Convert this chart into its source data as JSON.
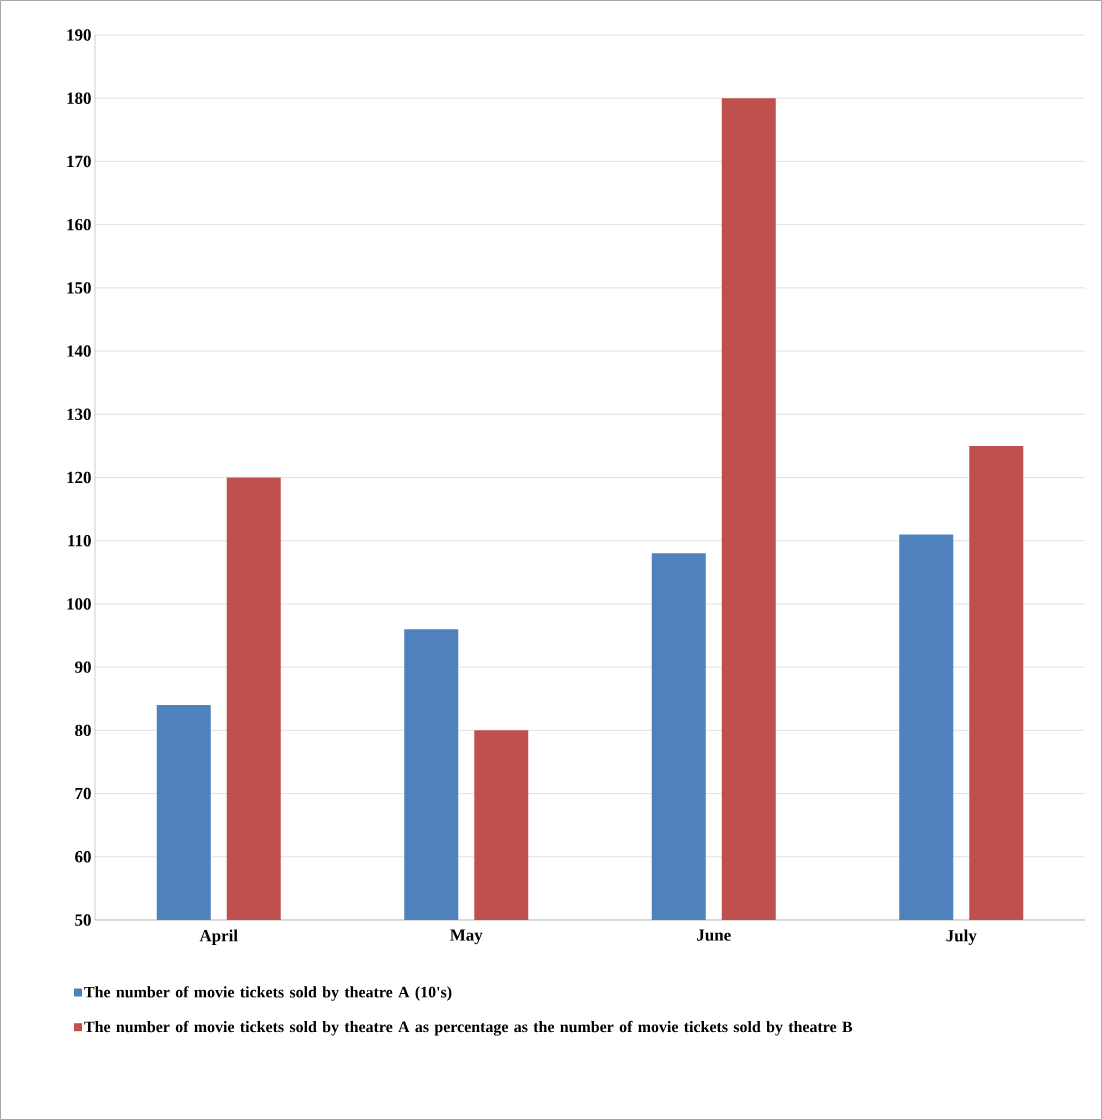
{
  "chart_data": {
    "type": "bar",
    "categories": [
      "April",
      "May",
      "June",
      "July"
    ],
    "series": [
      {
        "name": "The number of movie tickets sold by theatre A (10's)",
        "color": "#4f81bd",
        "values": [
          84,
          96,
          108,
          111
        ]
      },
      {
        "name": "The number of movie tickets sold by theatre A as percentage as the number of movie tickets sold by theatre B",
        "color": "#c0504d",
        "values": [
          120,
          80,
          180,
          125
        ]
      }
    ],
    "ylim": [
      50,
      190
    ],
    "yticks": [
      50,
      60,
      70,
      80,
      90,
      100,
      110,
      120,
      130,
      140,
      150,
      160,
      170,
      180,
      190
    ],
    "grid": "y",
    "legend": "bottom"
  }
}
